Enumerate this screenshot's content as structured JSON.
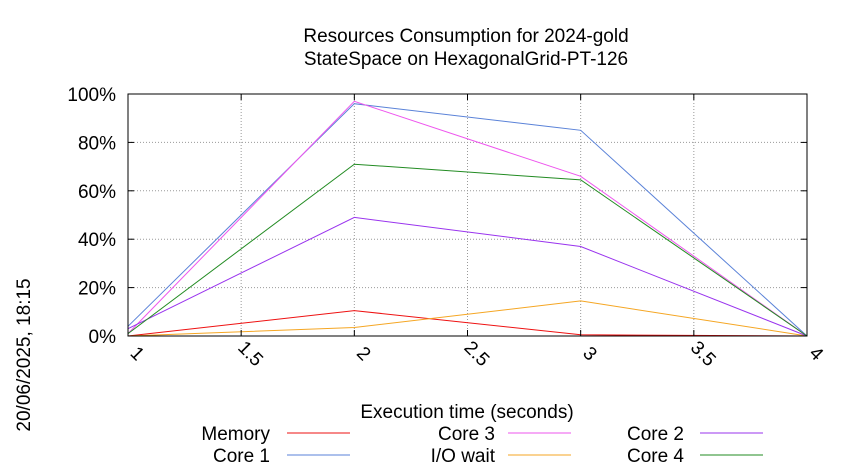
{
  "chart_data": {
    "type": "line",
    "title": "Resources Consumption for 2024-gold",
    "subtitle": "StateSpace on HexagonalGrid-PT-126",
    "xlabel": "Execution time (seconds)",
    "ylabel": "",
    "side_label": "20/06/2025, 18:15",
    "x": [
      1,
      2,
      3,
      4
    ],
    "xlim": [
      1,
      4
    ],
    "ylim": [
      0,
      100
    ],
    "xticks": [
      "1",
      "1.5",
      "2",
      "2.5",
      "3",
      "3.5",
      "4"
    ],
    "xtick_values": [
      1,
      1.5,
      2,
      2.5,
      3,
      3.5,
      4
    ],
    "yticks": [
      "0%",
      "20%",
      "40%",
      "60%",
      "80%",
      "100%"
    ],
    "ytick_values": [
      0,
      20,
      40,
      60,
      80,
      100
    ],
    "grid": true,
    "legend_position": "bottom",
    "series": [
      {
        "name": "Memory",
        "color": "#ee1111",
        "values": [
          0,
          10.5,
          0.5,
          0
        ]
      },
      {
        "name": "Core 1",
        "color": "#5a82d8",
        "values": [
          4,
          96,
          85,
          0
        ]
      },
      {
        "name": "Core 3",
        "color": "#ee55ee",
        "values": [
          1,
          97,
          66,
          0
        ]
      },
      {
        "name": "I/O wait",
        "color": "#f5a623",
        "values": [
          0,
          3.5,
          14.5,
          0
        ]
      },
      {
        "name": "Core 2",
        "color": "#9933ee",
        "values": [
          3,
          49,
          37,
          0
        ]
      },
      {
        "name": "Core 4",
        "color": "#228b22",
        "values": [
          1,
          71,
          64.5,
          0
        ]
      }
    ]
  }
}
